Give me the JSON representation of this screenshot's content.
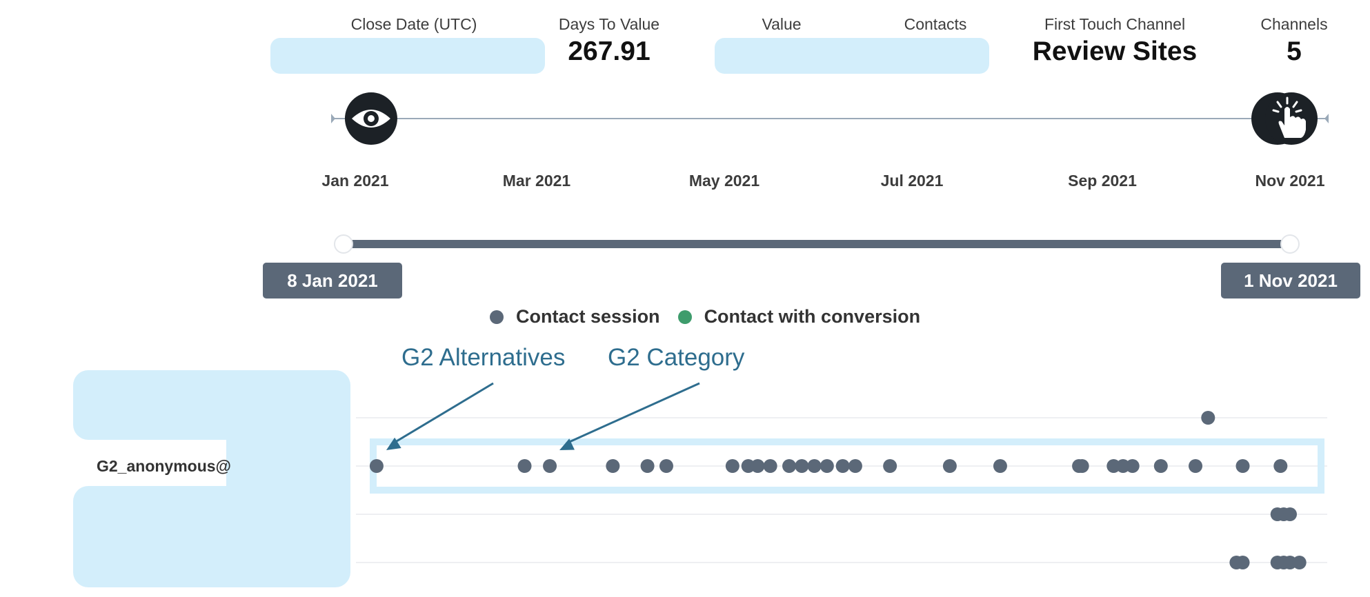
{
  "metrics": {
    "close_date": {
      "label": "Close Date (UTC)",
      "value": ""
    },
    "days_to_value": {
      "label": "Days To Value",
      "value": "267.91"
    },
    "value": {
      "label": "Value",
      "value": ""
    },
    "contacts": {
      "label": "Contacts",
      "value": ""
    },
    "first_touch": {
      "label": "First Touch Channel",
      "value": "Review Sites"
    },
    "channels": {
      "label": "Channels",
      "value": "5"
    }
  },
  "timeline": {
    "tick_labels": [
      "Jan 2021",
      "Mar 2021",
      "May 2021",
      "Jul 2021",
      "Sep 2021",
      "Nov 2021"
    ],
    "first_touch_icon": "eye-icon",
    "conversion_icon": "click-hand-icon",
    "first_touch_date": "2021-01-08",
    "conversion_date": "2021-11-01"
  },
  "range": {
    "start_label": "8 Jan 2021",
    "end_label": "1 Nov 2021"
  },
  "legend": [
    {
      "label": "Contact session",
      "color": "#5b6878"
    },
    {
      "label": "Contact with conversion",
      "color": "#3e9c6c"
    }
  ],
  "contact_label": "G2_anonymous@",
  "annotations": [
    {
      "text": "G2 Alternatives",
      "date": "2021-01-15",
      "color": "#2e6d8e"
    },
    {
      "text": "G2 Category",
      "date": "2021-03-11",
      "color": "#2e6d8e"
    }
  ],
  "colors": {
    "session": "#5b6878",
    "conversion": "#3e9c6c",
    "highlight": "#d3eefb",
    "axis": "#9aa9b8"
  },
  "chart_data": {
    "type": "scatter",
    "title": "",
    "xlabel": "",
    "ylabel": "",
    "x_axis": "date",
    "xlim": [
      "2021-01-01",
      "2021-11-05"
    ],
    "ticks": [
      "2021-01-01",
      "2021-03-01",
      "2021-05-01",
      "2021-07-01",
      "2021-09-01",
      "2021-11-01"
    ],
    "series": [
      {
        "name": "Contact session",
        "rows": [
          {
            "contact": "",
            "dates": [
              "2021-10-06"
            ]
          },
          {
            "contact": "G2_anonymous@",
            "dates": [
              "2021-01-15",
              "2021-03-03",
              "2021-03-11",
              "2021-03-31",
              "2021-04-11",
              "2021-04-17",
              "2021-05-08",
              "2021-05-13",
              "2021-05-16",
              "2021-05-20",
              "2021-05-26",
              "2021-05-30",
              "2021-06-03",
              "2021-06-07",
              "2021-06-12",
              "2021-06-16",
              "2021-06-27",
              "2021-07-16",
              "2021-08-01",
              "2021-08-26",
              "2021-08-27",
              "2021-09-06",
              "2021-09-09",
              "2021-09-12",
              "2021-09-21",
              "2021-10-02",
              "2021-10-17",
              "2021-10-29"
            ]
          },
          {
            "contact": "",
            "dates": [
              "2021-10-28",
              "2021-10-30",
              "2021-11-01"
            ]
          },
          {
            "contact": "",
            "dates": [
              "2021-10-15",
              "2021-10-17",
              "2021-10-28",
              "2021-10-30",
              "2021-11-01",
              "2021-11-04"
            ]
          }
        ]
      }
    ]
  }
}
